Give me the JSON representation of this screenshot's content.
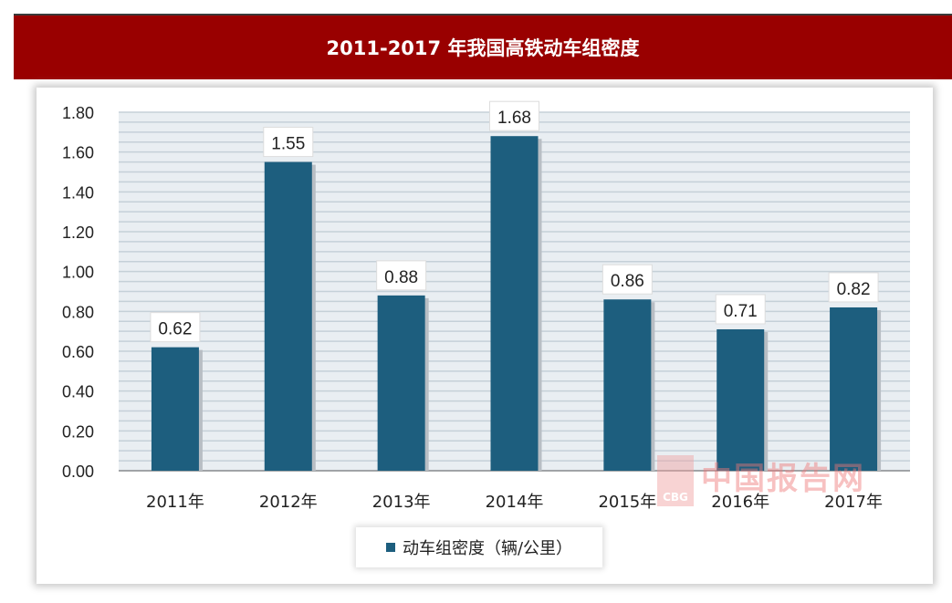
{
  "chart_data": {
    "type": "bar",
    "title": "2011-2017 年我国高铁动车组密度",
    "categories": [
      "2011年",
      "2012年",
      "2013年",
      "2014年",
      "2015年",
      "2016年",
      "2017年"
    ],
    "series": [
      {
        "name": "动车组密度（辆/公里）",
        "values": [
          0.62,
          1.55,
          0.88,
          1.68,
          0.86,
          0.71,
          0.82
        ],
        "color": "#1d5e7e"
      }
    ],
    "data_labels": [
      "0.62",
      "1.55",
      "0.88",
      "1.68",
      "0.86",
      "0.71",
      "0.82"
    ],
    "ylim": [
      0,
      1.8
    ],
    "yticks": [
      "0.00",
      "0.20",
      "0.40",
      "0.60",
      "0.80",
      "1.00",
      "1.20",
      "1.40",
      "1.60",
      "1.80"
    ],
    "grid": true,
    "legend": "bottom",
    "title_band_color": "#990000"
  },
  "watermark": {
    "text": "中国报告网",
    "logo": "CBG"
  }
}
